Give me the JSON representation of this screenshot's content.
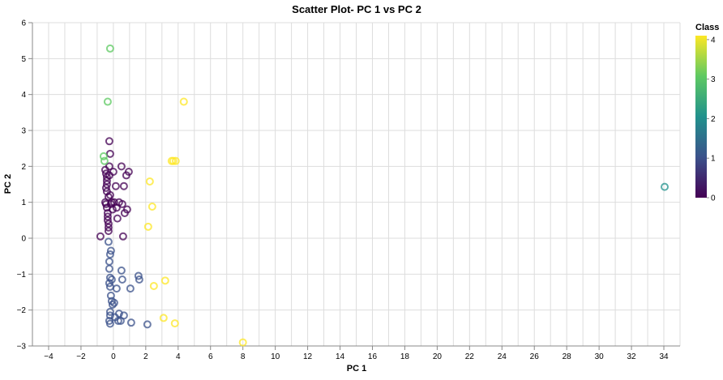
{
  "chart_data": {
    "type": "scatter",
    "title": "Scatter Plot- PC 1 vs PC 2",
    "xlabel": "PC 1",
    "ylabel": "PC 2",
    "xlim": [
      -5,
      35
    ],
    "ylim": [
      -3,
      6
    ],
    "x_ticks": [
      -4,
      -2,
      0,
      2,
      4,
      6,
      8,
      10,
      12,
      14,
      16,
      18,
      20,
      22,
      24,
      26,
      28,
      30,
      32,
      34
    ],
    "y_ticks": [
      -3,
      -2,
      -1,
      0,
      1,
      2,
      3,
      4,
      5,
      6
    ],
    "grid": true,
    "marker": "hollow-circle",
    "legend": {
      "title": "Class",
      "placement": "top-right",
      "type": "continuous-gradient",
      "ticks": [
        0,
        1,
        2,
        3,
        4
      ],
      "range": [
        0,
        4.1
      ]
    },
    "colormap": [
      "#440154",
      "#3b528b",
      "#21918c",
      "#5ec962",
      "#fde725"
    ],
    "points": [
      {
        "x": -0.8,
        "y": 0.05,
        "class": 0
      },
      {
        "x": -0.5,
        "y": 1.9,
        "class": 0
      },
      {
        "x": -0.45,
        "y": 1.8,
        "class": 0
      },
      {
        "x": -0.4,
        "y": 1.7,
        "class": 0
      },
      {
        "x": -0.4,
        "y": 1.6,
        "class": 0
      },
      {
        "x": -0.4,
        "y": 1.5,
        "class": 0
      },
      {
        "x": -0.45,
        "y": 1.4,
        "class": 0
      },
      {
        "x": -0.4,
        "y": 1.3,
        "class": 0
      },
      {
        "x": -0.5,
        "y": 1.0,
        "class": 0
      },
      {
        "x": -0.45,
        "y": 0.95,
        "class": 0
      },
      {
        "x": -0.4,
        "y": 0.85,
        "class": 0
      },
      {
        "x": -0.35,
        "y": 0.7,
        "class": 0
      },
      {
        "x": -0.35,
        "y": 0.6,
        "class": 0
      },
      {
        "x": -0.35,
        "y": 0.5,
        "class": 0
      },
      {
        "x": -0.3,
        "y": 0.4,
        "class": 0
      },
      {
        "x": -0.3,
        "y": 0.3,
        "class": 0
      },
      {
        "x": -0.3,
        "y": 0.2,
        "class": 0
      },
      {
        "x": -0.3,
        "y": 1.15,
        "class": 0
      },
      {
        "x": -0.25,
        "y": 1.75,
        "class": 0
      },
      {
        "x": -0.25,
        "y": 2.0,
        "class": 0
      },
      {
        "x": -0.2,
        "y": 1.2,
        "class": 0
      },
      {
        "x": -0.2,
        "y": 2.35,
        "class": 0
      },
      {
        "x": -0.25,
        "y": 2.7,
        "class": 0
      },
      {
        "x": -0.1,
        "y": 1.0,
        "class": 0
      },
      {
        "x": -0.05,
        "y": 0.8,
        "class": 0
      },
      {
        "x": 0.0,
        "y": 1.85,
        "class": 0
      },
      {
        "x": 0.05,
        "y": 1.0,
        "class": 0
      },
      {
        "x": 0.15,
        "y": 1.45,
        "class": 0
      },
      {
        "x": 0.2,
        "y": 0.85,
        "class": 0
      },
      {
        "x": 0.25,
        "y": 0.55,
        "class": 0
      },
      {
        "x": 0.35,
        "y": 1.0,
        "class": 0
      },
      {
        "x": 0.5,
        "y": 2.0,
        "class": 0
      },
      {
        "x": 0.55,
        "y": 0.95,
        "class": 0
      },
      {
        "x": 0.6,
        "y": 0.05,
        "class": 0
      },
      {
        "x": 0.65,
        "y": 1.45,
        "class": 0
      },
      {
        "x": 0.7,
        "y": 0.7,
        "class": 0
      },
      {
        "x": 0.8,
        "y": 1.75,
        "class": 0
      },
      {
        "x": 0.85,
        "y": 0.8,
        "class": 0
      },
      {
        "x": 0.95,
        "y": 1.85,
        "class": 0
      },
      {
        "x": -0.15,
        "y": 0.95,
        "class": 0
      },
      {
        "x": -0.3,
        "y": -0.1,
        "class": 1
      },
      {
        "x": -0.15,
        "y": -0.35,
        "class": 1
      },
      {
        "x": -0.2,
        "y": -0.45,
        "class": 1
      },
      {
        "x": -0.25,
        "y": -0.65,
        "class": 1
      },
      {
        "x": -0.25,
        "y": -0.85,
        "class": 1
      },
      {
        "x": -0.2,
        "y": -1.1,
        "class": 1
      },
      {
        "x": -0.1,
        "y": -1.15,
        "class": 1
      },
      {
        "x": -0.25,
        "y": -1.25,
        "class": 1
      },
      {
        "x": -0.2,
        "y": -1.35,
        "class": 1
      },
      {
        "x": -0.15,
        "y": -1.6,
        "class": 1
      },
      {
        "x": -0.1,
        "y": -1.75,
        "class": 1
      },
      {
        "x": -0.05,
        "y": -1.85,
        "class": 1
      },
      {
        "x": 0.05,
        "y": -1.8,
        "class": 1
      },
      {
        "x": -0.2,
        "y": -2.05,
        "class": 1
      },
      {
        "x": -0.2,
        "y": -2.15,
        "class": 1
      },
      {
        "x": -0.25,
        "y": -2.3,
        "class": 1
      },
      {
        "x": -0.2,
        "y": -2.38,
        "class": 1
      },
      {
        "x": 0.1,
        "y": -2.2,
        "class": 1
      },
      {
        "x": 0.2,
        "y": -1.4,
        "class": 1
      },
      {
        "x": 0.3,
        "y": -2.3,
        "class": 1
      },
      {
        "x": 0.35,
        "y": -2.1,
        "class": 1
      },
      {
        "x": 0.45,
        "y": -2.3,
        "class": 1
      },
      {
        "x": 0.5,
        "y": -0.9,
        "class": 1
      },
      {
        "x": 0.55,
        "y": -1.15,
        "class": 1
      },
      {
        "x": 0.65,
        "y": -2.15,
        "class": 1
      },
      {
        "x": 1.05,
        "y": -1.4,
        "class": 1
      },
      {
        "x": 1.1,
        "y": -2.35,
        "class": 1
      },
      {
        "x": 1.55,
        "y": -1.05,
        "class": 1
      },
      {
        "x": 1.6,
        "y": -1.15,
        "class": 1
      },
      {
        "x": 2.1,
        "y": -2.4,
        "class": 1
      },
      {
        "x": 34.05,
        "y": 1.43,
        "class": 2
      },
      {
        "x": -0.2,
        "y": 5.28,
        "class": 3
      },
      {
        "x": -0.35,
        "y": 3.8,
        "class": 3
      },
      {
        "x": -0.6,
        "y": 2.28,
        "class": 3
      },
      {
        "x": -0.55,
        "y": 2.15,
        "class": 3
      },
      {
        "x": 2.15,
        "y": 0.32,
        "class": 4
      },
      {
        "x": 2.25,
        "y": 1.58,
        "class": 4
      },
      {
        "x": 2.4,
        "y": 0.88,
        "class": 4
      },
      {
        "x": 2.5,
        "y": -1.33,
        "class": 4
      },
      {
        "x": 3.1,
        "y": -2.22,
        "class": 4
      },
      {
        "x": 3.2,
        "y": -1.18,
        "class": 4
      },
      {
        "x": 3.6,
        "y": 2.15,
        "class": 4
      },
      {
        "x": 3.7,
        "y": 2.15,
        "class": 4
      },
      {
        "x": 3.85,
        "y": 2.15,
        "class": 4
      },
      {
        "x": 3.8,
        "y": -2.37,
        "class": 4
      },
      {
        "x": 4.35,
        "y": 3.8,
        "class": 4
      },
      {
        "x": 8.0,
        "y": -2.9,
        "class": 4
      }
    ]
  }
}
